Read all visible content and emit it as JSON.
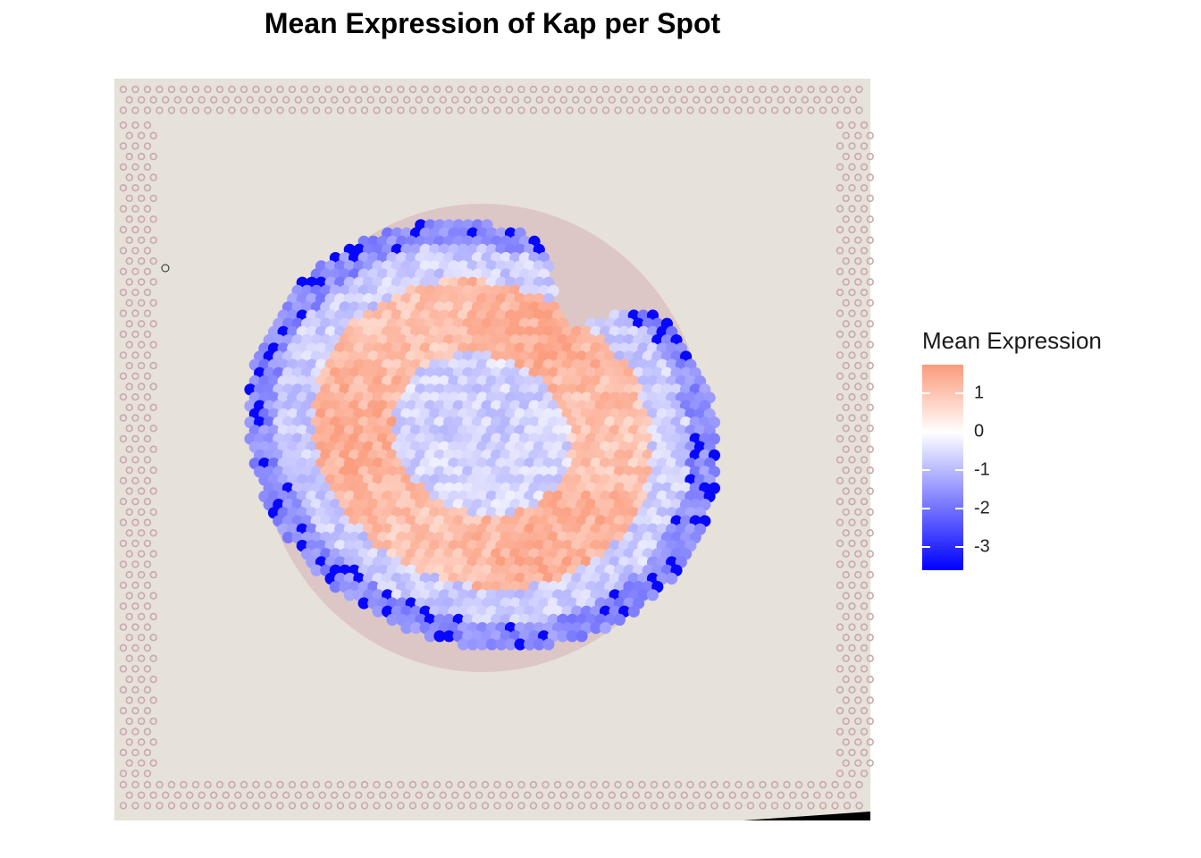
{
  "chart_data": {
    "type": "scatter",
    "title": "Mean Expression of Kap per Spot",
    "xlabel": "",
    "ylabel": "",
    "grid": false,
    "legend": {
      "title": "Mean Expression",
      "position": "right",
      "breaks": [
        1,
        0,
        -1,
        -2,
        -3
      ],
      "break_labels": [
        "1",
        "0",
        "-1",
        "-2",
        "-3"
      ],
      "range": [
        -3.6,
        1.75
      ],
      "colors": {
        "low": "#0000ff",
        "mid": "#ffffff",
        "high": "#fb9a7b"
      }
    },
    "background": "tissue histology image with fiducial dot frame",
    "spots": {
      "description": "spatial transcriptomics spots on tissue section, colored by mean expression",
      "summary": {
        "outer_rim_min": -3.5,
        "outer_ring_mean": -1.0,
        "middle_ring_mean": 1.2,
        "center_mean": -0.7,
        "max": 1.7
      }
    }
  },
  "colors": {
    "tissue_background": "#e6e1d9",
    "fiducial_dot": "#c8a9ad",
    "tissue_edge": "#b25070"
  }
}
